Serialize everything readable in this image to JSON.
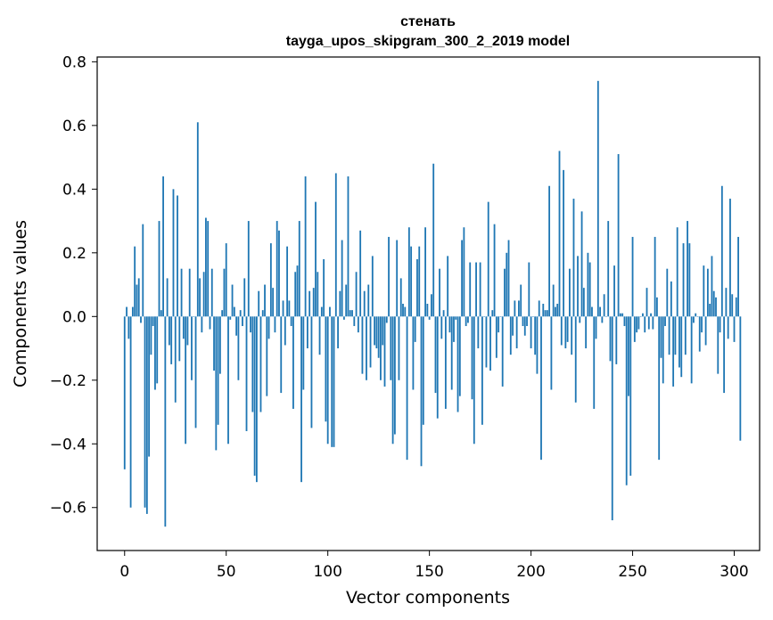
{
  "chart_data": {
    "type": "bar",
    "title": "стенать",
    "subtitle": "tayga_upos_skipgram_300_2_2019 model",
    "xlabel": "Vector components",
    "ylabel": "Components values",
    "xlim": [
      -13.5,
      312.5
    ],
    "ylim": [
      -0.735,
      0.815
    ],
    "xticks": [
      0,
      50,
      100,
      150,
      200,
      250,
      300
    ],
    "yticks": [
      -0.6,
      -0.4,
      -0.2,
      0.0,
      0.2,
      0.4,
      0.6,
      0.8
    ],
    "ytick_labels": [
      "−0.6",
      "−0.4",
      "−0.2",
      "0.0",
      "0.2",
      "0.4",
      "0.6",
      "0.8"
    ],
    "grid": false,
    "bar_color": "#1f77b4",
    "values": [
      -0.48,
      0.03,
      -0.07,
      -0.6,
      0.03,
      0.22,
      0.1,
      0.12,
      -0.02,
      0.29,
      -0.6,
      -0.62,
      -0.44,
      -0.12,
      -0.03,
      -0.23,
      -0.21,
      0.3,
      0.02,
      0.44,
      -0.66,
      0.12,
      -0.09,
      -0.15,
      0.4,
      -0.27,
      0.38,
      -0.14,
      0.15,
      -0.07,
      -0.4,
      -0.09,
      0.15,
      -0.2,
      0.0,
      -0.35,
      0.61,
      0.12,
      -0.05,
      0.14,
      0.31,
      0.3,
      -0.04,
      0.15,
      -0.17,
      -0.42,
      -0.34,
      -0.18,
      0.02,
      0.15,
      0.23,
      -0.4,
      -0.01,
      0.1,
      0.03,
      -0.06,
      -0.2,
      0.02,
      -0.03,
      0.12,
      -0.36,
      0.3,
      -0.05,
      -0.3,
      -0.5,
      -0.52,
      0.08,
      -0.3,
      0.02,
      0.1,
      -0.25,
      -0.07,
      0.23,
      0.09,
      -0.05,
      0.3,
      0.27,
      -0.24,
      0.05,
      -0.09,
      0.22,
      0.05,
      -0.03,
      -0.29,
      0.14,
      0.16,
      0.3,
      -0.52,
      -0.23,
      0.44,
      -0.1,
      0.08,
      -0.35,
      0.09,
      0.36,
      0.14,
      -0.12,
      0.03,
      0.18,
      -0.33,
      -0.4,
      0.03,
      -0.41,
      -0.41,
      0.45,
      -0.1,
      0.08,
      0.24,
      -0.01,
      0.1,
      0.44,
      0.02,
      0.02,
      -0.03,
      0.14,
      -0.05,
      0.27,
      -0.18,
      0.08,
      -0.2,
      0.1,
      -0.16,
      0.19,
      -0.09,
      -0.1,
      -0.13,
      -0.2,
      -0.09,
      -0.22,
      -0.02,
      0.25,
      -0.2,
      -0.4,
      -0.37,
      0.24,
      -0.2,
      0.12,
      0.04,
      0.03,
      -0.45,
      0.28,
      0.22,
      -0.23,
      -0.08,
      0.18,
      0.22,
      -0.47,
      -0.34,
      0.28,
      0.04,
      -0.01,
      0.07,
      0.48,
      -0.24,
      -0.32,
      0.15,
      -0.07,
      0.02,
      -0.29,
      0.19,
      -0.05,
      -0.23,
      -0.08,
      -0.01,
      -0.3,
      -0.25,
      0.24,
      0.28,
      -0.03,
      -0.02,
      0.17,
      -0.26,
      -0.4,
      0.17,
      -0.1,
      0.17,
      -0.34,
      0.0,
      -0.16,
      0.36,
      -0.17,
      0.02,
      0.29,
      -0.13,
      -0.05,
      0.0,
      -0.22,
      0.15,
      0.2,
      0.24,
      -0.12,
      -0.06,
      0.05,
      -0.1,
      0.05,
      0.1,
      -0.03,
      -0.06,
      -0.03,
      0.17,
      -0.1,
      0.0,
      -0.12,
      -0.18,
      0.05,
      -0.45,
      0.04,
      0.02,
      0.02,
      0.41,
      -0.23,
      0.1,
      0.03,
      0.04,
      0.52,
      -0.09,
      0.46,
      -0.1,
      -0.08,
      0.15,
      -0.12,
      0.37,
      -0.27,
      0.19,
      -0.02,
      0.33,
      0.09,
      -0.1,
      0.2,
      0.17,
      0.03,
      -0.29,
      -0.07,
      0.74,
      0.03,
      -0.02,
      0.07,
      0.0,
      0.3,
      -0.14,
      -0.64,
      0.16,
      -0.15,
      0.51,
      0.01,
      0.01,
      -0.03,
      -0.53,
      -0.25,
      -0.5,
      0.25,
      -0.08,
      -0.05,
      -0.04,
      0.0,
      0.01,
      -0.05,
      0.09,
      -0.04,
      0.01,
      -0.04,
      0.25,
      0.06,
      -0.45,
      -0.13,
      -0.21,
      -0.03,
      0.15,
      -0.12,
      0.11,
      -0.22,
      -0.12,
      0.28,
      -0.16,
      -0.19,
      0.23,
      -0.12,
      0.3,
      0.23,
      -0.21,
      -0.02,
      0.01,
      0.0,
      -0.11,
      -0.05,
      0.16,
      -0.09,
      0.15,
      0.04,
      0.19,
      0.08,
      0.06,
      -0.18,
      -0.05,
      0.41,
      -0.24,
      0.09,
      -0.07,
      0.37,
      0.07,
      -0.08,
      0.06,
      0.25,
      -0.39
    ]
  }
}
